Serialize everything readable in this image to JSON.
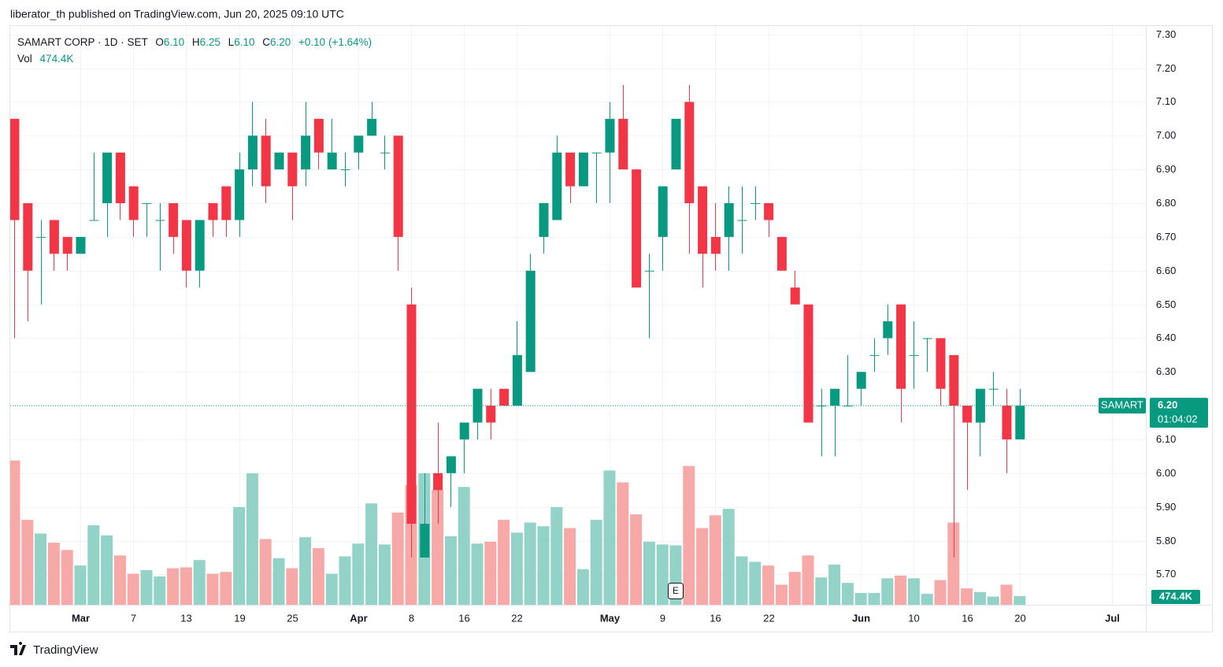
{
  "header": {
    "byline": "liberator_th published on TradingView.com, Jun 20, 2025 09:10 UTC"
  },
  "footer": {
    "brand": "TradingView"
  },
  "legend": {
    "symbol": "SAMART CORP · 1D · SET",
    "open_label": "O",
    "open": "6.10",
    "high_label": "H",
    "high": "6.25",
    "low_label": "L",
    "low": "6.10",
    "close_label": "C",
    "close": "6.20",
    "change": "+0.10 (+1.64%)",
    "vol_label": "Vol",
    "vol": "474.4K",
    "ticker_tag": "SAMART",
    "countdown": "01:04:02",
    "event_marker": "E"
  },
  "chart_data": {
    "type": "candlestick",
    "categories": [
      null,
      null,
      null,
      null,
      null,
      "Mar",
      null,
      null,
      null,
      "7",
      null,
      null,
      null,
      "13",
      null,
      null,
      null,
      "19",
      null,
      null,
      null,
      "25",
      null,
      null,
      null,
      null,
      "Apr",
      null,
      null,
      null,
      "8",
      null,
      null,
      null,
      "16",
      null,
      null,
      null,
      "22",
      null,
      null,
      null,
      null,
      null,
      null,
      "May",
      null,
      null,
      null,
      "9",
      null,
      null,
      null,
      "16",
      null,
      null,
      null,
      "22",
      null,
      null,
      null,
      null,
      null,
      null,
      "Jun",
      null,
      null,
      null,
      "10",
      null,
      null,
      null,
      "16",
      null,
      null,
      null,
      "20",
      null,
      null,
      null,
      null,
      null,
      null,
      "Jul",
      null
    ],
    "open": [
      7.05,
      6.8,
      6.7,
      6.75,
      6.7,
      6.65,
      6.75,
      6.8,
      6.95,
      6.85,
      6.8,
      6.75,
      6.8,
      6.75,
      6.6,
      6.8,
      6.85,
      6.75,
      6.9,
      7.0,
      6.9,
      6.95,
      6.9,
      7.05,
      6.9,
      6.9,
      6.95,
      7.0,
      6.95,
      7.0,
      6.5,
      5.75,
      6.0,
      6.0,
      6.1,
      6.15,
      6.2,
      6.25,
      6.2,
      6.3,
      6.7,
      6.75,
      6.95,
      6.85,
      6.95,
      6.95,
      7.05,
      6.9,
      6.6,
      6.7,
      6.9,
      7.1,
      6.85,
      6.7,
      6.7,
      6.75,
      6.8,
      6.8,
      6.7,
      6.55,
      6.5,
      6.2,
      6.2,
      6.2,
      6.25,
      6.35,
      6.4,
      6.5,
      6.35,
      6.4,
      6.4,
      6.35,
      6.2,
      6.15,
      6.25,
      6.2,
      6.1,
      null,
      null,
      null,
      null,
      null,
      null,
      null,
      null
    ],
    "high": [
      7.05,
      6.8,
      6.75,
      6.75,
      6.7,
      6.7,
      6.95,
      6.95,
      6.95,
      6.85,
      6.8,
      6.8,
      6.8,
      6.75,
      6.75,
      6.8,
      6.85,
      6.95,
      7.1,
      7.05,
      6.95,
      6.95,
      7.1,
      7.05,
      7.05,
      6.95,
      7.0,
      7.1,
      7.0,
      7.0,
      6.55,
      6.0,
      6.15,
      6.05,
      6.15,
      6.25,
      6.25,
      6.25,
      6.45,
      6.65,
      6.8,
      7.0,
      6.95,
      6.95,
      6.95,
      7.1,
      7.15,
      6.9,
      6.65,
      6.85,
      7.05,
      7.15,
      6.85,
      6.8,
      6.85,
      6.85,
      6.85,
      6.8,
      6.7,
      6.6,
      6.5,
      6.25,
      6.25,
      6.35,
      6.3,
      6.4,
      6.5,
      6.5,
      6.45,
      6.4,
      6.4,
      6.35,
      6.2,
      6.25,
      6.3,
      6.25,
      6.25,
      null,
      null,
      null,
      null,
      null,
      null,
      null,
      null
    ],
    "low": [
      6.4,
      6.45,
      6.5,
      6.6,
      6.6,
      6.65,
      6.75,
      6.7,
      6.75,
      6.7,
      6.7,
      6.6,
      6.65,
      6.55,
      6.55,
      6.7,
      6.7,
      6.7,
      6.85,
      6.8,
      6.9,
      6.75,
      6.85,
      6.9,
      6.9,
      6.85,
      6.9,
      7.0,
      6.9,
      6.6,
      5.75,
      5.75,
      5.85,
      5.9,
      6.0,
      6.1,
      6.1,
      6.2,
      6.2,
      6.3,
      6.65,
      6.75,
      6.8,
      6.85,
      6.8,
      6.8,
      6.9,
      6.55,
      6.4,
      6.6,
      6.9,
      6.65,
      6.55,
      6.6,
      6.6,
      6.65,
      6.75,
      6.7,
      6.6,
      6.5,
      6.15,
      6.05,
      6.05,
      6.2,
      6.2,
      6.3,
      6.35,
      6.15,
      6.25,
      6.3,
      6.2,
      5.75,
      5.95,
      6.05,
      6.2,
      6.0,
      6.1,
      null,
      null,
      null,
      null,
      null,
      null,
      null,
      null
    ],
    "close": [
      6.75,
      6.6,
      6.7,
      6.65,
      6.65,
      6.7,
      6.75,
      6.95,
      6.8,
      6.75,
      6.8,
      6.75,
      6.7,
      6.6,
      6.75,
      6.75,
      6.75,
      6.9,
      7.0,
      6.85,
      6.95,
      6.85,
      7.0,
      6.95,
      6.95,
      6.9,
      7.0,
      7.05,
      6.95,
      6.7,
      5.85,
      5.85,
      5.95,
      6.05,
      6.15,
      6.25,
      6.15,
      6.2,
      6.35,
      6.6,
      6.8,
      6.95,
      6.85,
      6.95,
      6.95,
      7.05,
      6.9,
      6.55,
      6.6,
      6.85,
      7.05,
      6.8,
      6.65,
      6.65,
      6.8,
      6.75,
      6.8,
      6.75,
      6.6,
      6.5,
      6.15,
      6.2,
      6.25,
      6.2,
      6.3,
      6.35,
      6.45,
      6.25,
      6.35,
      6.4,
      6.25,
      6.2,
      6.15,
      6.25,
      6.25,
      6.1,
      6.2,
      null,
      null,
      null,
      null,
      null,
      null,
      null,
      null
    ],
    "volume": [
      7900000,
      4650000,
      3900000,
      3400000,
      3000000,
      2150000,
      4350000,
      3800000,
      2700000,
      1700000,
      1900000,
      1550000,
      2000000,
      2050000,
      2450000,
      1700000,
      1800000,
      5350000,
      7200000,
      3600000,
      2550000,
      2000000,
      3700000,
      3100000,
      1700000,
      2650000,
      3350000,
      5550000,
      3300000,
      5050000,
      6550000,
      7200000,
      6300000,
      3750000,
      6450000,
      3350000,
      3450000,
      4650000,
      3950000,
      4500000,
      4300000,
      5350000,
      4200000,
      1950000,
      4650000,
      7350000,
      6700000,
      4950000,
      3450000,
      3300000,
      3250000,
      7600000,
      4200000,
      4900000,
      5250000,
      2650000,
      2350000,
      2150000,
      1100000,
      1800000,
      2700000,
      1500000,
      2200000,
      1200000,
      650000,
      650000,
      1450000,
      1600000,
      1450000,
      600000,
      1350000,
      4500000,
      900000,
      700000,
      450000,
      1100000,
      474400,
      null,
      null,
      null,
      null,
      null,
      null,
      null,
      null
    ],
    "up_color": "#089981",
    "down_color": "#f23645",
    "volume_up_color": "#92d2c7",
    "volume_down_color": "#f7a9a8",
    "ylim": [
      5.61,
      7.325
    ],
    "yticks": [
      {
        "value": 5.7,
        "label": "5.70"
      },
      {
        "value": 5.8,
        "label": "5.80"
      },
      {
        "value": 5.9,
        "label": "5.90"
      },
      {
        "value": 6.0,
        "label": "6.00"
      },
      {
        "value": 6.1,
        "label": "6.10"
      },
      {
        "value": 6.2,
        "label": "6.20"
      },
      {
        "value": 6.3,
        "label": "6.30"
      },
      {
        "value": 6.4,
        "label": "6.40"
      },
      {
        "value": 6.5,
        "label": "6.50"
      },
      {
        "value": 6.6,
        "label": "6.60"
      },
      {
        "value": 6.7,
        "label": "6.70"
      },
      {
        "value": 6.8,
        "label": "6.80"
      },
      {
        "value": 6.9,
        "label": "6.90"
      },
      {
        "value": 7.0,
        "label": "7.00"
      },
      {
        "value": 7.1,
        "label": "7.10"
      },
      {
        "value": 7.2,
        "label": "7.20"
      },
      {
        "value": 7.3,
        "label": "7.30"
      }
    ],
    "volume_ylim": [
      0,
      10000000
    ],
    "grid": true
  }
}
